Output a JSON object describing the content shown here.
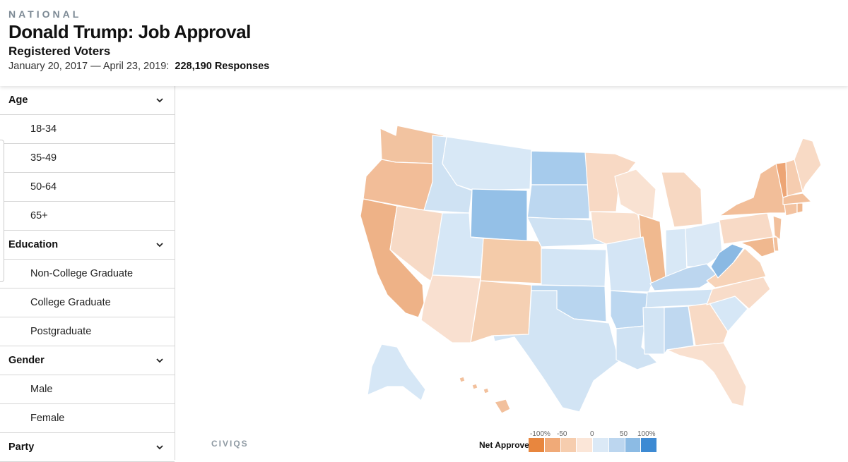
{
  "header": {
    "kicker": "NATIONAL",
    "title": "Donald Trump: Job Approval",
    "subtitle": "Registered Voters",
    "date_range": "January 20, 2017 — April 23, 2019:",
    "responses": "228,190 Responses"
  },
  "sidebar": {
    "age": {
      "label": "Age",
      "items": [
        "18-34",
        "35-49",
        "50-64",
        "65+"
      ]
    },
    "education": {
      "label": "Education",
      "items": [
        "Non-College Graduate",
        "College Graduate",
        "Postgraduate"
      ]
    },
    "gender": {
      "label": "Gender",
      "items": [
        "Male",
        "Female"
      ]
    },
    "party": {
      "label": "Party"
    }
  },
  "legend": {
    "title": "Net Approve",
    "ticks": [
      "-100%",
      "-50",
      "0",
      "50",
      "100%"
    ],
    "colors": [
      "#e8863e",
      "#f0aa78",
      "#f6cdae",
      "#fbe6d8",
      "#dbe9f6",
      "#bcd6ef",
      "#8cbbe4",
      "#3d8ad3"
    ]
  },
  "brand": "CIVIQS",
  "colors": {
    "deep_orange": "#eda575",
    "orange": "#f2b991",
    "light_orange": "#f6d0b4",
    "pale_orange": "#fae3d3",
    "pale_blue": "#d5e6f5",
    "light_blue": "#bed8f0",
    "blue": "#94c0e7",
    "deep_blue": "#7fb2e0"
  }
}
